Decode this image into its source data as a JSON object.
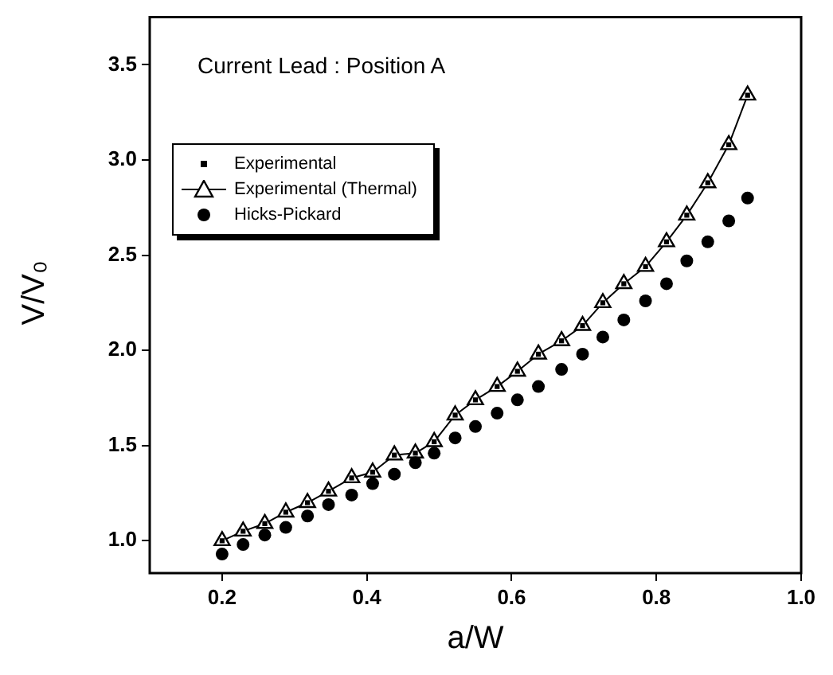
{
  "chart_data": {
    "type": "scatter",
    "title": "Current Lead : Position A",
    "xlabel": "a/W",
    "ylabel": "V/V₀",
    "xlim": [
      0.1,
      1.0
    ],
    "xticks": [
      0.2,
      0.4,
      0.6,
      0.8,
      {
        "value": 1,
        "label": "1.0"
      }
    ],
    "ylim": [
      0.83,
      3.75
    ],
    "yticks": [
      {
        "value": 1,
        "label": "1.0"
      },
      1.5,
      {
        "value": 2,
        "label": "2.0"
      },
      2.5,
      {
        "value": 3,
        "label": "3.0"
      },
      3.5
    ],
    "x": [
      0.2,
      0.229,
      0.259,
      0.288,
      0.318,
      0.347,
      0.379,
      0.408,
      0.438,
      0.467,
      0.493,
      0.522,
      0.55,
      0.58,
      0.608,
      0.637,
      0.669,
      0.698,
      0.726,
      0.755,
      0.785,
      0.814,
      0.842,
      0.871,
      0.9,
      0.926
    ],
    "legend": "top left",
    "grid": false,
    "series": [
      {
        "name": "Experimental",
        "marker": "square",
        "color": "#000000",
        "values": [
          1.0,
          1.05,
          1.09,
          1.15,
          1.2,
          1.26,
          1.33,
          1.36,
          1.45,
          1.46,
          1.52,
          1.66,
          1.74,
          1.81,
          1.89,
          1.98,
          2.05,
          2.13,
          2.25,
          2.35,
          2.44,
          2.57,
          2.71,
          2.88,
          3.08,
          3.34
        ]
      },
      {
        "name": "Experimental (Thermal)",
        "type": "line",
        "marker": "triangle",
        "line_style": "solid",
        "color": "#000000",
        "values": [
          1.0,
          1.05,
          1.09,
          1.15,
          1.2,
          1.26,
          1.33,
          1.36,
          1.45,
          1.46,
          1.52,
          1.66,
          1.74,
          1.81,
          1.89,
          1.98,
          2.05,
          2.13,
          2.25,
          2.35,
          2.44,
          2.57,
          2.71,
          2.88,
          3.08,
          3.34
        ]
      },
      {
        "name": "Hicks-Pickard",
        "marker": "circle",
        "color": "#000000",
        "values": [
          0.93,
          0.98,
          1.03,
          1.07,
          1.13,
          1.19,
          1.24,
          1.3,
          1.35,
          1.41,
          1.46,
          1.54,
          1.6,
          1.67,
          1.74,
          1.81,
          1.9,
          1.98,
          2.07,
          2.16,
          2.26,
          2.35,
          2.47,
          2.57,
          2.68,
          2.8
        ]
      }
    ]
  }
}
